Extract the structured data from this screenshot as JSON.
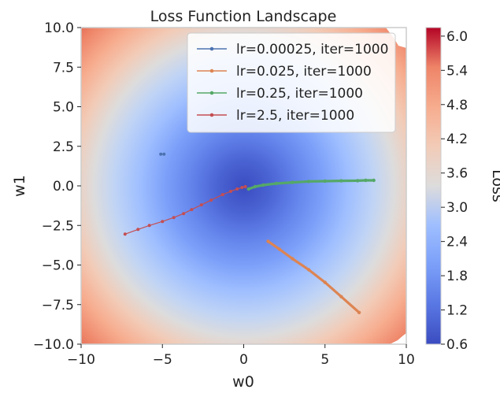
{
  "chart_data": {
    "type": "contour",
    "title": "Loss Function Landscape",
    "xlabel": "w0",
    "ylabel": "w1",
    "xlim": [
      -10,
      10
    ],
    "ylim": [
      -10,
      10
    ],
    "x_ticks": [
      -10,
      -5,
      0,
      5,
      10
    ],
    "y_ticks": [
      10.0,
      7.5,
      5.0,
      2.5,
      0.0,
      -2.5,
      -5.0,
      -7.5,
      -10.0
    ],
    "x_tick_labels": [
      "−10",
      "−5",
      "0",
      "5",
      "10"
    ],
    "y_tick_labels": [
      "10.0",
      "7.5",
      "5.0",
      "2.5",
      "0.0",
      "−2.5",
      "−5.0",
      "−7.5",
      "−10.0"
    ],
    "colorbar": {
      "label": "Loss",
      "range": [
        0.6,
        6.15
      ],
      "ticks": [
        6.0,
        5.4,
        4.8,
        4.2,
        3.6,
        3.0,
        2.4,
        1.8,
        1.2,
        0.6
      ],
      "tick_labels": [
        "6.0",
        "5.4",
        "4.8",
        "4.2",
        "3.6",
        "3.0",
        "2.4",
        "1.8",
        "1.2",
        "0.6"
      ],
      "colormap": "coolwarm"
    },
    "legend_position": "top-right",
    "grid": false,
    "series": [
      {
        "name": "lr=0.00025, iter=1000",
        "color": "#4c72b0",
        "points": [
          [
            -5.1,
            2.0
          ],
          [
            -4.9,
            2.0
          ]
        ]
      },
      {
        "name": "lr=0.025, iter=1000",
        "color": "#dd8452",
        "points": [
          [
            1.5,
            -3.5
          ],
          [
            2.2,
            -4.0
          ],
          [
            3.0,
            -4.6
          ],
          [
            4.0,
            -5.3
          ],
          [
            5.0,
            -6.1
          ],
          [
            6.0,
            -7.0
          ],
          [
            7.1,
            -8.0
          ]
        ]
      },
      {
        "name": "lr=0.25, iter=1000",
        "color": "#55a868",
        "points": [
          [
            0.3,
            -0.2
          ],
          [
            0.7,
            -0.05
          ],
          [
            1.2,
            0.05
          ],
          [
            2.0,
            0.15
          ],
          [
            3.0,
            0.22
          ],
          [
            4.0,
            0.28
          ],
          [
            5.0,
            0.3
          ],
          [
            6.0,
            0.32
          ],
          [
            7.0,
            0.33
          ],
          [
            7.5,
            0.35
          ],
          [
            8.0,
            0.35
          ]
        ]
      },
      {
        "name": "lr=2.5, iter=1000",
        "color": "#c44e52",
        "points": [
          [
            -7.3,
            -3.05
          ],
          [
            -6.5,
            -2.75
          ],
          [
            -5.8,
            -2.5
          ],
          [
            -5.0,
            -2.25
          ],
          [
            -4.3,
            -2.0
          ],
          [
            -3.7,
            -1.75
          ],
          [
            -3.2,
            -1.5
          ],
          [
            -2.6,
            -1.2
          ],
          [
            -2.0,
            -0.9
          ],
          [
            -1.3,
            -0.55
          ],
          [
            -0.8,
            -0.35
          ],
          [
            -0.4,
            -0.2
          ],
          [
            -0.1,
            -0.1
          ],
          [
            0.1,
            -0.05
          ]
        ]
      }
    ]
  }
}
